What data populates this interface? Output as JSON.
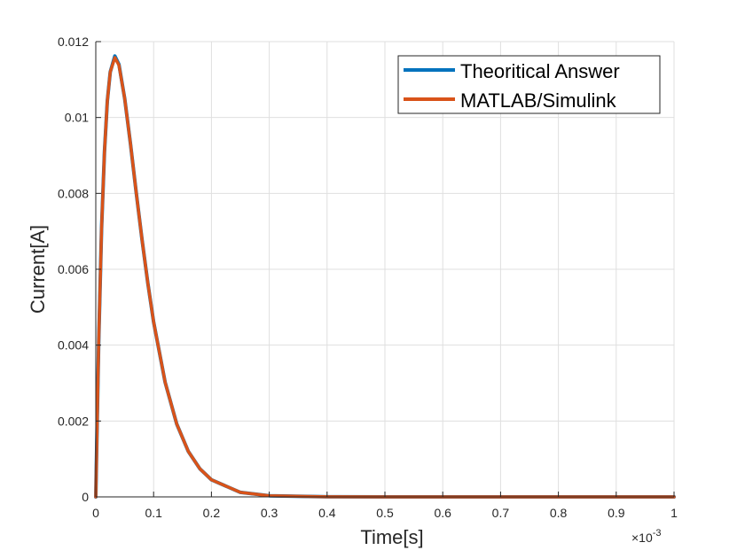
{
  "chart_data": {
    "type": "line",
    "title": "",
    "xlabel": "Time[s]",
    "ylabel": "Current[A]",
    "x_exponent_label": "×10",
    "x_exponent": "-3",
    "xlim": [
      0,
      1
    ],
    "ylim": [
      0,
      0.012
    ],
    "grid": true,
    "legend_position": "northeast",
    "x_ticks": [
      0,
      0.1,
      0.2,
      0.3,
      0.4,
      0.5,
      0.6,
      0.7,
      0.8,
      0.9,
      1
    ],
    "x_tick_labels": [
      "0",
      "0.1",
      "0.2",
      "0.3",
      "0.4",
      "0.5",
      "0.6",
      "0.7",
      "0.8",
      "0.9",
      "1"
    ],
    "y_ticks": [
      0,
      0.002,
      0.004,
      0.006,
      0.008,
      0.01,
      0.012
    ],
    "y_tick_labels": [
      "0",
      "0.002",
      "0.004",
      "0.006",
      "0.008",
      "0.01",
      "0.012"
    ],
    "x": [
      0,
      0.005,
      0.01,
      0.015,
      0.02,
      0.025,
      0.033,
      0.04,
      0.05,
      0.06,
      0.07,
      0.08,
      0.09,
      0.1,
      0.12,
      0.14,
      0.16,
      0.18,
      0.2,
      0.25,
      0.3,
      0.4,
      0.5,
      0.6,
      0.7,
      0.8,
      0.9,
      1
    ],
    "series": [
      {
        "name": "Theoritical Answer",
        "color": "#0072BD",
        "values": [
          0,
          0.0041,
          0.00706,
          0.0091,
          0.01043,
          0.0112,
          0.01162,
          0.0114,
          0.0105,
          0.00931,
          0.00802,
          0.00677,
          0.00563,
          0.00461,
          0.00302,
          0.00192,
          0.0012,
          0.00074,
          0.00045,
          0.00012,
          3e-05,
          2e-06,
          0,
          0,
          0,
          0,
          0,
          0
        ]
      },
      {
        "name": "MATLAB/Simulink",
        "color": "#D95319",
        "values": [
          0,
          0.0041,
          0.00706,
          0.0091,
          0.01043,
          0.0112,
          0.01158,
          0.01138,
          0.0105,
          0.00931,
          0.00802,
          0.00677,
          0.00563,
          0.00461,
          0.00302,
          0.00192,
          0.0012,
          0.00074,
          0.00045,
          0.00012,
          3e-05,
          2e-06,
          0,
          0,
          0,
          0,
          0,
          0
        ]
      }
    ]
  }
}
